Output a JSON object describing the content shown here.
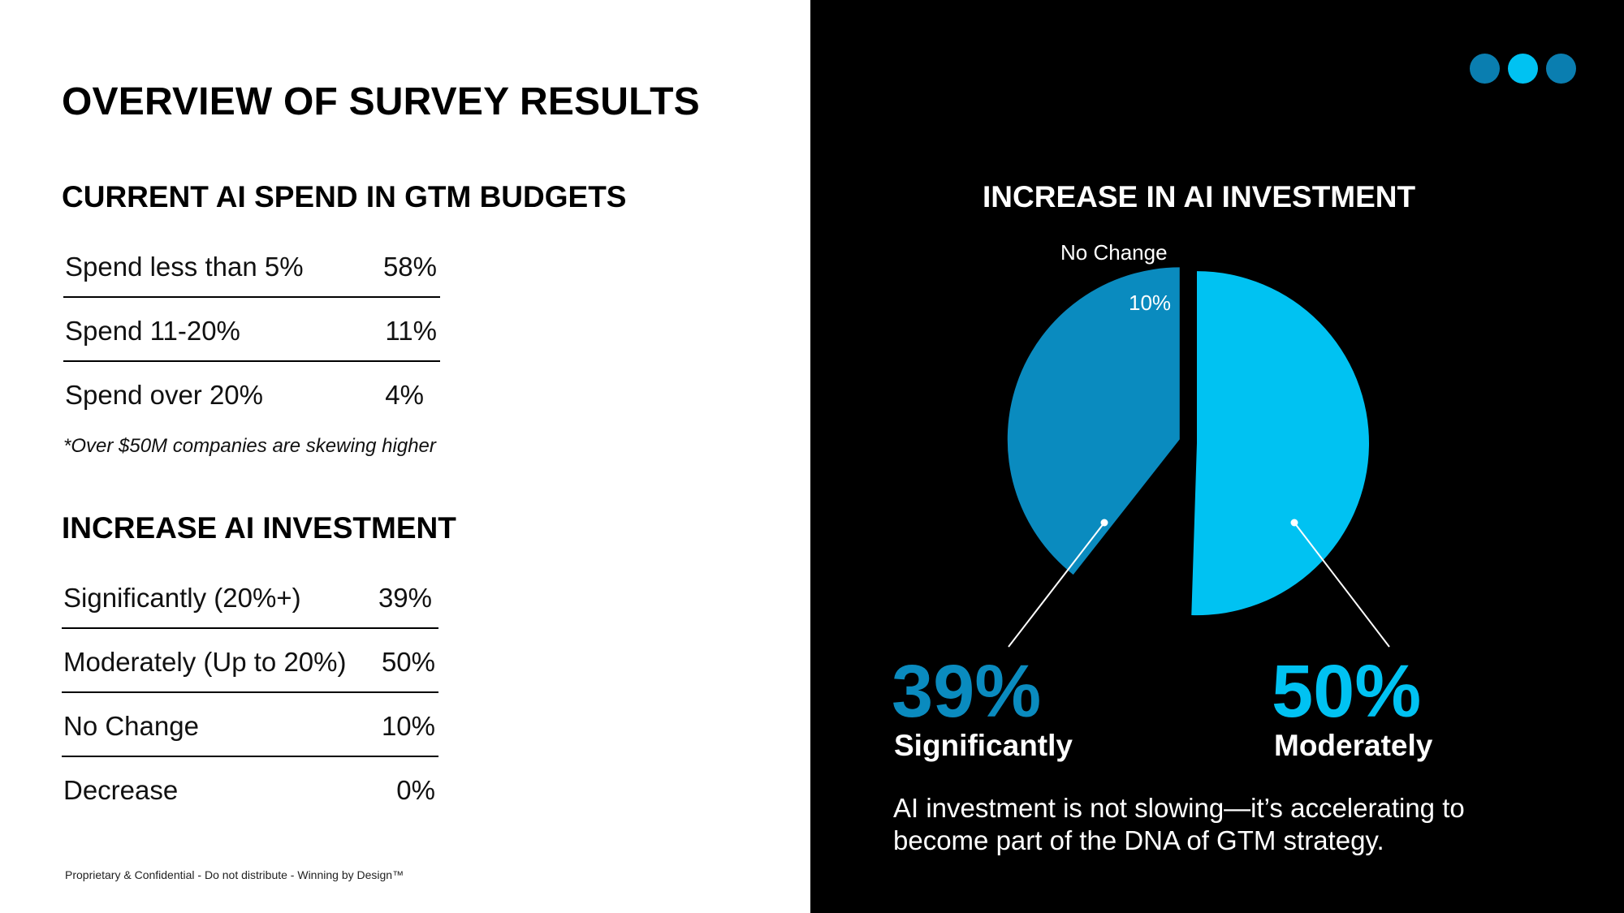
{
  "colors": {
    "significantly": "#0a8bbf",
    "moderately": "#00c2f2",
    "no_change": "#000000",
    "dot_dark": "#0a7eb0",
    "dot_light": "#00c2f2"
  },
  "header": {
    "title": "OVERVIEW OF SURVEY RESULTS"
  },
  "spend": {
    "title": "CURRENT AI SPEND IN GTM BUDGETS",
    "rows": [
      {
        "label": "Spend less than 5%",
        "value": "58%"
      },
      {
        "label": "Spend 11-20%",
        "value": "11%"
      },
      {
        "label": "Spend over 20%",
        "value": "4%"
      }
    ],
    "footnote": "*Over $50M companies are skewing higher"
  },
  "investment": {
    "title": "INCREASE AI INVESTMENT",
    "rows": [
      {
        "label": "Significantly (20%+)",
        "value": "39%"
      },
      {
        "label": "Moderately (Up to 20%)",
        "value": "50%"
      },
      {
        "label": "No Change",
        "value": "10%"
      },
      {
        "label": "Decrease",
        "value": "0%"
      }
    ]
  },
  "footer": {
    "confidential": "Proprietary & Confidential - Do not distribute - Winning by Design™"
  },
  "nav_dots": [
    "dot-dark",
    "dot-light",
    "dot-dark"
  ],
  "chart_data": {
    "type": "pie",
    "title": "INCREASE IN AI INVESTMENT",
    "slices": [
      {
        "label": "Moderately",
        "value": 50,
        "color": "#00c2f2"
      },
      {
        "label": "No Change",
        "value": 10,
        "color": "#000000"
      },
      {
        "label": "Significantly",
        "value": 39,
        "color": "#0a8bbf"
      }
    ],
    "annotations": {
      "no_change_label": "No Change",
      "no_change_pct": "10%",
      "significantly_pct": "39%",
      "significantly_label": "Significantly",
      "moderately_pct": "50%",
      "moderately_label": "Moderately"
    }
  },
  "takeaway": "AI investment is not slowing—it’s accelerating to become part of the DNA of GTM strategy."
}
